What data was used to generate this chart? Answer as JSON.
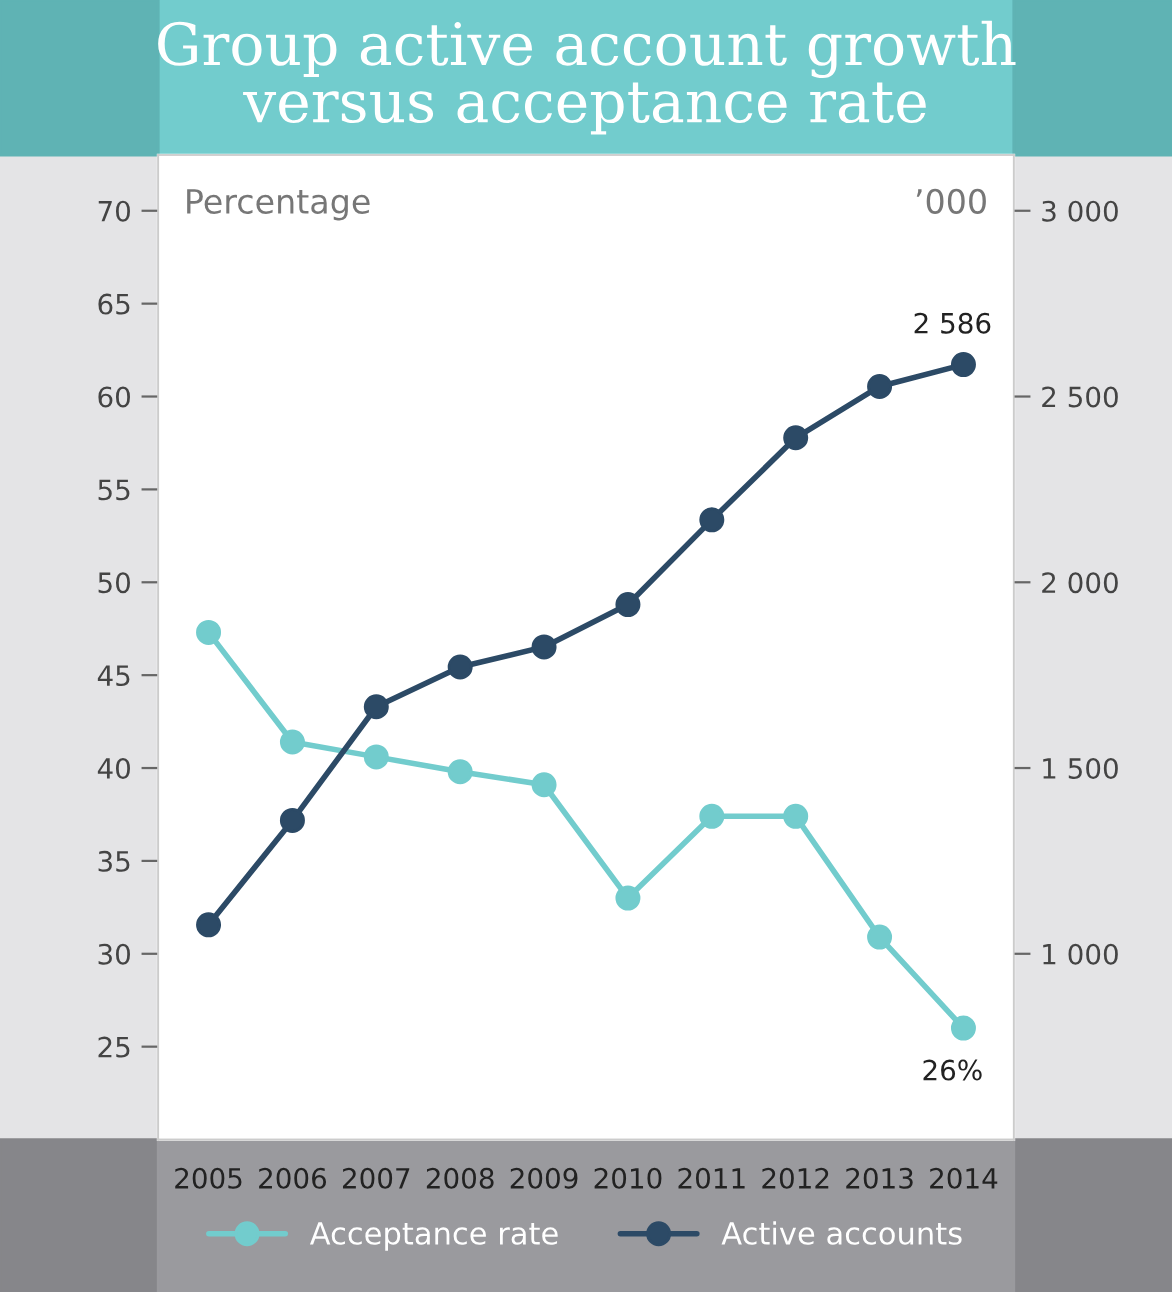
{
  "chart_data": {
    "type": "line",
    "title": "Group active account growth\nversus acceptance rate",
    "ylabel": "Percentage",
    "y2label": "’000",
    "categories": [
      "2005",
      "2006",
      "2007",
      "2008",
      "2009",
      "2010",
      "2011",
      "2012",
      "2013",
      "2014"
    ],
    "series": [
      {
        "name": "Acceptance rate",
        "color": "#72cccd",
        "values": [
          47.3,
          41.4,
          40.6,
          39.8,
          39.1,
          33.0,
          37.4,
          37.4,
          30.9,
          26
        ],
        "value_labels": [
          null,
          null,
          null,
          null,
          null,
          null,
          null,
          null,
          null,
          "26%"
        ]
      },
      {
        "name": "Active accounts",
        "color": "#2c4a66",
        "axis": "y2",
        "values": [
          1078,
          1359,
          1665,
          1772,
          1826,
          1940,
          2168,
          2389,
          2527,
          2586
        ],
        "value_labels": [
          null,
          null,
          null,
          null,
          null,
          null,
          null,
          null,
          null,
          "2 586"
        ]
      }
    ],
    "ylim": [
      20,
      73
    ],
    "yticks": [
      25,
      30,
      35,
      40,
      45,
      50,
      55,
      60,
      65,
      70
    ],
    "y2lim": [
      500,
      3150
    ],
    "y2ticks": [
      {
        "value": 1000,
        "label": "1 000"
      },
      {
        "value": 1500,
        "label": "1 500"
      },
      {
        "value": 2000,
        "label": "2 000"
      },
      {
        "value": 2500,
        "label": "2 500"
      },
      {
        "value": 3000,
        "label": "3 000"
      }
    ],
    "marker": "circle",
    "grid": false,
    "legend": "bottom"
  }
}
